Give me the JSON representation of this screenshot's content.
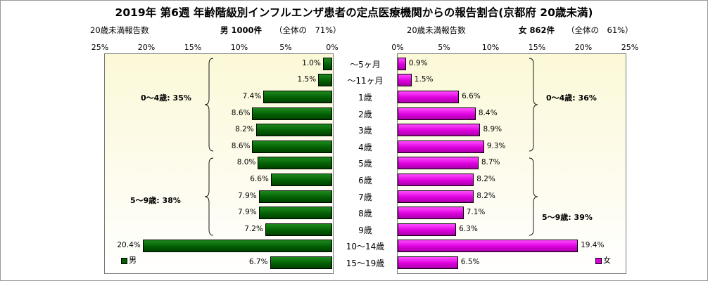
{
  "title": "2019年 第6週 年齢階級別インフルエンザ患者の定点医療機関からの報告割合(京都府 20歳未満)",
  "left_panel": {
    "header_label": "20歳未満報告数",
    "count_label": "男 1000件",
    "share_label": "（全体の　71%）"
  },
  "right_panel": {
    "header_label": "20歳未満報告数",
    "count_label": "女 862件",
    "share_label": "（全体の　61%）"
  },
  "chart_data": {
    "type": "bar",
    "orientation": "horizontal-butterfly",
    "categories": [
      "〜5ヶ月",
      "〜11ヶ月",
      "1歳",
      "2歳",
      "3歳",
      "4歳",
      "5歳",
      "6歳",
      "7歳",
      "8歳",
      "9歳",
      "10〜14歳",
      "15〜19歳"
    ],
    "series": [
      {
        "name": "男",
        "color": "#036003",
        "values": [
          1.0,
          1.5,
          7.4,
          8.6,
          8.2,
          8.6,
          8.0,
          6.6,
          7.9,
          7.9,
          7.2,
          20.4,
          6.7
        ],
        "labels": [
          "1.0%",
          "1.5%",
          "7.4%",
          "8.6%",
          "8.2%",
          "8.6%",
          "8.0%",
          "6.6%",
          "7.9%",
          "7.9%",
          "7.2%",
          "20.4%",
          "6.7%"
        ]
      },
      {
        "name": "女",
        "color": "#dd00dd",
        "values": [
          0.9,
          1.5,
          6.6,
          8.4,
          8.9,
          9.3,
          8.7,
          8.2,
          8.2,
          7.1,
          6.3,
          19.4,
          6.5
        ],
        "labels": [
          "0.9%",
          "1.5%",
          "6.6%",
          "8.4%",
          "8.9%",
          "9.3%",
          "8.7%",
          "8.2%",
          "8.2%",
          "7.1%",
          "6.3%",
          "19.4%",
          "6.5%"
        ]
      }
    ],
    "xlim": [
      0,
      25
    ],
    "left_ticks": [
      "25%",
      "20%",
      "15%",
      "10%",
      "5%",
      "0%"
    ],
    "right_ticks": [
      "0%",
      "5%",
      "10%",
      "15%",
      "20%",
      "25%"
    ],
    "groups": {
      "male": [
        "0〜4歳: 35%",
        "5〜9歳: 38%"
      ],
      "female": [
        "0〜4歳: 36%",
        "5〜9歳: 39%"
      ]
    },
    "legend": {
      "male": "男",
      "female": "女"
    }
  }
}
